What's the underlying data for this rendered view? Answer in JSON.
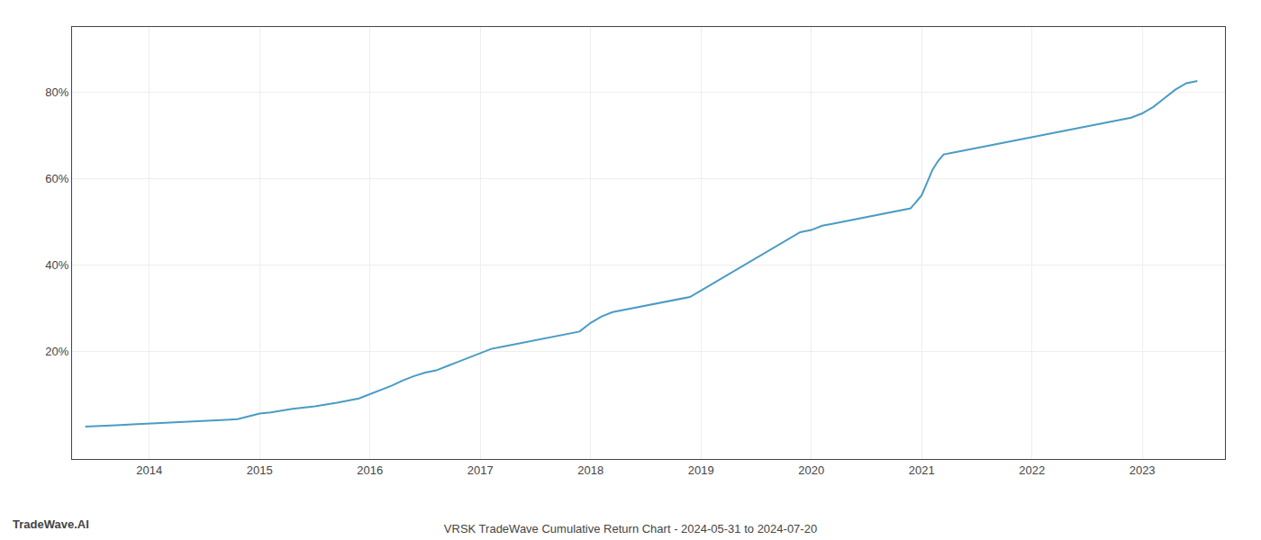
{
  "chart_data": {
    "type": "line",
    "title": "VRSK TradeWave Cumulative Return Chart - 2024-05-31 to 2024-07-20",
    "annotations": [
      {
        "text": "TradeWave.AI"
      }
    ],
    "color": "#4a9cc4",
    "grid": true,
    "x": [
      2013.42,
      2013.55,
      2013.7,
      2013.85,
      2014.0,
      2014.2,
      2014.4,
      2014.6,
      2014.8,
      2015.0,
      2015.05,
      2015.1,
      2015.2,
      2015.3,
      2015.5,
      2015.7,
      2015.9,
      2016.0,
      2016.1,
      2016.2,
      2016.3,
      2016.4,
      2016.5,
      2016.6,
      2016.7,
      2016.8,
      2016.9,
      2017.0,
      2017.1,
      2017.2,
      2017.3,
      2017.4,
      2017.5,
      2017.6,
      2017.7,
      2017.8,
      2017.9,
      2018.0,
      2018.1,
      2018.2,
      2018.3,
      2018.4,
      2018.5,
      2018.6,
      2018.7,
      2018.8,
      2018.9,
      2019.0,
      2019.1,
      2019.2,
      2019.3,
      2019.4,
      2019.5,
      2019.6,
      2019.7,
      2019.8,
      2019.9,
      2020.0,
      2020.1,
      2020.2,
      2020.3,
      2020.4,
      2020.5,
      2020.6,
      2020.7,
      2020.8,
      2020.9,
      2021.0,
      2021.05,
      2021.1,
      2021.15,
      2021.2,
      2021.3,
      2021.4,
      2021.5,
      2021.6,
      2021.7,
      2021.8,
      2021.9,
      2022.0,
      2022.1,
      2022.2,
      2022.3,
      2022.4,
      2022.5,
      2022.6,
      2022.7,
      2022.8,
      2022.9,
      2023.0,
      2023.1,
      2023.2,
      2023.3,
      2023.4,
      2023.5
    ],
    "values": [
      2.5,
      2.6,
      2.8,
      3.0,
      3.2,
      3.5,
      3.8,
      4.0,
      4.2,
      5.5,
      5.6,
      5.8,
      6.2,
      6.6,
      7.2,
      8.0,
      9.0,
      10.0,
      11.0,
      12.0,
      13.2,
      14.2,
      15.0,
      15.5,
      16.5,
      17.5,
      18.5,
      19.5,
      20.5,
      21.0,
      21.5,
      22.0,
      22.5,
      23.0,
      23.5,
      24.0,
      24.5,
      26.5,
      28.0,
      29.0,
      29.5,
      30.0,
      30.5,
      31.0,
      31.5,
      32.0,
      32.5,
      34.0,
      35.5,
      37.0,
      38.5,
      40.0,
      41.5,
      43.0,
      44.5,
      46.0,
      47.5,
      48.0,
      49.0,
      49.5,
      50.0,
      50.5,
      51.0,
      51.5,
      52.0,
      52.5,
      53.0,
      56.0,
      59.0,
      62.0,
      64.0,
      65.5,
      66.0,
      66.5,
      67.0,
      67.5,
      68.0,
      68.5,
      69.0,
      69.5,
      70.0,
      70.5,
      71.0,
      71.5,
      72.0,
      72.5,
      73.0,
      73.5,
      74.0,
      75.0,
      76.5,
      78.5,
      80.5,
      82.0,
      82.5
    ],
    "xlim": [
      2013.3,
      2023.75
    ],
    "xticks": [
      2014,
      2015,
      2016,
      2017,
      2018,
      2019,
      2020,
      2021,
      2022,
      2023
    ],
    "ylim": [
      -5,
      95
    ],
    "yticks": [
      {
        "value": 20,
        "label": "20%"
      },
      {
        "value": 40,
        "label": "40%"
      },
      {
        "value": 60,
        "label": "60%"
      },
      {
        "value": 80,
        "label": "80%"
      }
    ]
  }
}
